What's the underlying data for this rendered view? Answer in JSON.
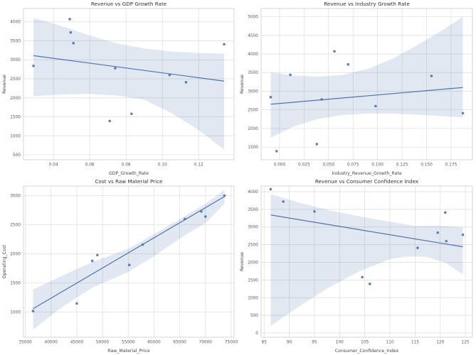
{
  "figure": {
    "background": "#ffffff"
  },
  "style": {
    "point_color": "#4c72b0",
    "point_opacity": 0.9,
    "point_radius": 1.8,
    "line_color": "#4c72b0",
    "line_width": 1.2,
    "band_color": "#4c72b0",
    "band_opacity": 0.16,
    "grid_color": "#dcdcdc",
    "spine_color": "#cccccc",
    "title_color": "#333333",
    "tick_color": "#555555",
    "label_color": "#444444",
    "title_size": 7.2,
    "tick_size": 5.8,
    "label_size": 6.2
  },
  "chart_data": [
    {
      "type": "scatter",
      "id": "revenue-vs-gdp-growth-rate",
      "title": "Revenue vs GDP Growth Rate",
      "xlabel": "GDP_Growth_Rate",
      "ylabel": "Revenue",
      "xlim": [
        0.0235,
        0.1395
      ],
      "ylim": [
        370,
        4350
      ],
      "grid": true,
      "legend": "none",
      "xticks": [
        0.04,
        0.06,
        0.08,
        0.1,
        0.12
      ],
      "xtick_labels": [
        "0.04",
        "0.06",
        "0.08",
        "0.10",
        "0.12"
      ],
      "yticks": [
        500,
        1000,
        1500,
        2000,
        2500,
        3000,
        3500,
        4000
      ],
      "ytick_labels": [
        "500",
        "1000",
        "1500",
        "2000",
        "2500",
        "3000",
        "3500",
        "4000"
      ],
      "points": [
        [
          0.029,
          2840
        ],
        [
          0.049,
          4070
        ],
        [
          0.0495,
          3720
        ],
        [
          0.051,
          3440
        ],
        [
          0.071,
          1390
        ],
        [
          0.074,
          2780
        ],
        [
          0.083,
          1580
        ],
        [
          0.104,
          2600
        ],
        [
          0.113,
          2410
        ],
        [
          0.134,
          3410
        ]
      ],
      "regression": [
        [
          0.029,
          3110
        ],
        [
          0.134,
          2440
        ]
      ],
      "ci_upper": [
        [
          0.029,
          4100
        ],
        [
          0.045,
          3880
        ],
        [
          0.06,
          3640
        ],
        [
          0.075,
          3430
        ],
        [
          0.09,
          3300
        ],
        [
          0.105,
          3220
        ],
        [
          0.12,
          3180
        ],
        [
          0.134,
          3165
        ]
      ],
      "ci_lower": [
        [
          0.029,
          2040
        ],
        [
          0.045,
          2090
        ],
        [
          0.06,
          2100
        ],
        [
          0.075,
          2060
        ],
        [
          0.09,
          1950
        ],
        [
          0.105,
          1600
        ],
        [
          0.12,
          1150
        ],
        [
          0.134,
          640
        ]
      ]
    },
    {
      "type": "scatter",
      "id": "revenue-vs-industry-growth-rate",
      "title": "Revenue vs Industry Growth Rate",
      "xlabel": "Industry_Revenue_Growth_Rate",
      "ylabel": "Revenue",
      "xlim": [
        -0.0188,
        0.1968
      ],
      "ylim": [
        1160,
        5220
      ],
      "grid": true,
      "legend": "none",
      "xticks": [
        0.0,
        0.025,
        0.05,
        0.075,
        0.1,
        0.125,
        0.15,
        0.175
      ],
      "xtick_labels": [
        "0.000",
        "0.025",
        "0.050",
        "0.075",
        "0.100",
        "0.125",
        "0.150",
        "0.175"
      ],
      "yticks": [
        1500,
        2000,
        2500,
        3000,
        3500,
        4000,
        4500,
        5000
      ],
      "ytick_labels": [
        "1500",
        "2000",
        "2500",
        "3000",
        "3500",
        "4000",
        "4500",
        "5000"
      ],
      "points": [
        [
          -0.009,
          2840
        ],
        [
          -0.003,
          1390
        ],
        [
          0.011,
          3440
        ],
        [
          0.038,
          1580
        ],
        [
          0.043,
          2780
        ],
        [
          0.056,
          4070
        ],
        [
          0.07,
          3720
        ],
        [
          0.098,
          2600
        ],
        [
          0.155,
          3410
        ],
        [
          0.187,
          2410
        ]
      ],
      "regression": [
        [
          -0.009,
          2650
        ],
        [
          0.187,
          3100
        ]
      ],
      "ci_upper": [
        [
          -0.009,
          3500
        ],
        [
          0.015,
          3420
        ],
        [
          0.04,
          3390
        ],
        [
          0.065,
          3440
        ],
        [
          0.09,
          3600
        ],
        [
          0.115,
          3870
        ],
        [
          0.14,
          4230
        ],
        [
          0.165,
          4620
        ],
        [
          0.187,
          5000
        ]
      ],
      "ci_lower": [
        [
          -0.009,
          1750
        ],
        [
          0.015,
          2060
        ],
        [
          0.04,
          2260
        ],
        [
          0.065,
          2360
        ],
        [
          0.09,
          2400
        ],
        [
          0.115,
          2400
        ],
        [
          0.14,
          2370
        ],
        [
          0.165,
          2330
        ],
        [
          0.187,
          2300
        ]
      ]
    },
    {
      "type": "scatter",
      "id": "cost-vs-raw-material-price",
      "title": "Cost vs Raw Material Price",
      "xlabel": "Raw_Material_Price",
      "ylabel": "Operating_Cost",
      "xlim": [
        34640,
        75560
      ],
      "ylim": [
        570,
        3165
      ],
      "grid": true,
      "legend": "none",
      "xticks": [
        35000,
        40000,
        45000,
        50000,
        55000,
        60000,
        65000,
        70000,
        75000
      ],
      "xtick_labels": [
        "35000",
        "40000",
        "45000",
        "50000",
        "55000",
        "60000",
        "65000",
        "70000",
        "75000"
      ],
      "yticks": [
        1000,
        1500,
        2000,
        2500,
        3000
      ],
      "ytick_labels": [
        "1000",
        "1500",
        "2000",
        "2500",
        "3000"
      ],
      "points": [
        [
          36500,
          1020
        ],
        [
          45000,
          1150
        ],
        [
          48000,
          1880
        ],
        [
          49000,
          1980
        ],
        [
          55200,
          1810
        ],
        [
          57800,
          2160
        ],
        [
          66000,
          2600
        ],
        [
          69200,
          2730
        ],
        [
          70000,
          2640
        ],
        [
          73700,
          3000
        ]
      ],
      "regression": [
        [
          36500,
          1060
        ],
        [
          73700,
          2985
        ]
      ],
      "ci_upper": [
        [
          36500,
          1390
        ],
        [
          42000,
          1620
        ],
        [
          48000,
          1860
        ],
        [
          55000,
          2090
        ],
        [
          60000,
          2340
        ],
        [
          66000,
          2650
        ],
        [
          70000,
          2860
        ],
        [
          73700,
          3100
        ]
      ],
      "ci_lower": [
        [
          36500,
          700
        ],
        [
          42000,
          1080
        ],
        [
          48000,
          1420
        ],
        [
          55000,
          1690
        ],
        [
          60000,
          1960
        ],
        [
          66000,
          2320
        ],
        [
          70000,
          2530
        ],
        [
          73700,
          2860
        ]
      ]
    },
    {
      "type": "scatter",
      "id": "revenue-vs-consumer-confidence-index",
      "title": "Revenue vs Consumer Confidence Index",
      "xlabel": "Consumer_Confidence_Index",
      "ylabel": "Revenue",
      "xlim": [
        84.4,
        126.4
      ],
      "ylim": [
        -120,
        4160
      ],
      "grid": true,
      "legend": "none",
      "xticks": [
        85,
        90,
        95,
        100,
        105,
        110,
        115,
        120,
        125
      ],
      "xtick_labels": [
        "85",
        "90",
        "95",
        "100",
        "105",
        "110",
        "115",
        "120",
        "125"
      ],
      "yticks": [
        0,
        500,
        1000,
        1500,
        2000,
        2500,
        3000,
        3500,
        4000
      ],
      "ytick_labels": [
        "0",
        "500",
        "1000",
        "1500",
        "2000",
        "2500",
        "3000",
        "3500",
        "4000"
      ],
      "points": [
        [
          86.3,
          4070
        ],
        [
          88.8,
          3720
        ],
        [
          95,
          3440
        ],
        [
          104.5,
          1580
        ],
        [
          106,
          1390
        ],
        [
          115.5,
          2410
        ],
        [
          119.5,
          2840
        ],
        [
          121,
          3410
        ],
        [
          121.2,
          2600
        ],
        [
          124.5,
          2780
        ]
      ],
      "regression": [
        [
          86.3,
          3340
        ],
        [
          124.5,
          2440
        ]
      ],
      "ci_upper": [
        [
          86.3,
          3930
        ],
        [
          92,
          3690
        ],
        [
          98,
          3470
        ],
        [
          104,
          3300
        ],
        [
          110,
          3150
        ],
        [
          115,
          3030
        ],
        [
          119,
          3040
        ],
        [
          122,
          3020
        ],
        [
          124.5,
          2990
        ]
      ],
      "ci_lower": [
        [
          86.3,
          200
        ],
        [
          92,
          760
        ],
        [
          98,
          1300
        ],
        [
          104,
          1750
        ],
        [
          110,
          2090
        ],
        [
          113,
          2160
        ],
        [
          117,
          2160
        ],
        [
          121,
          1990
        ],
        [
          124.5,
          1660
        ]
      ]
    }
  ]
}
